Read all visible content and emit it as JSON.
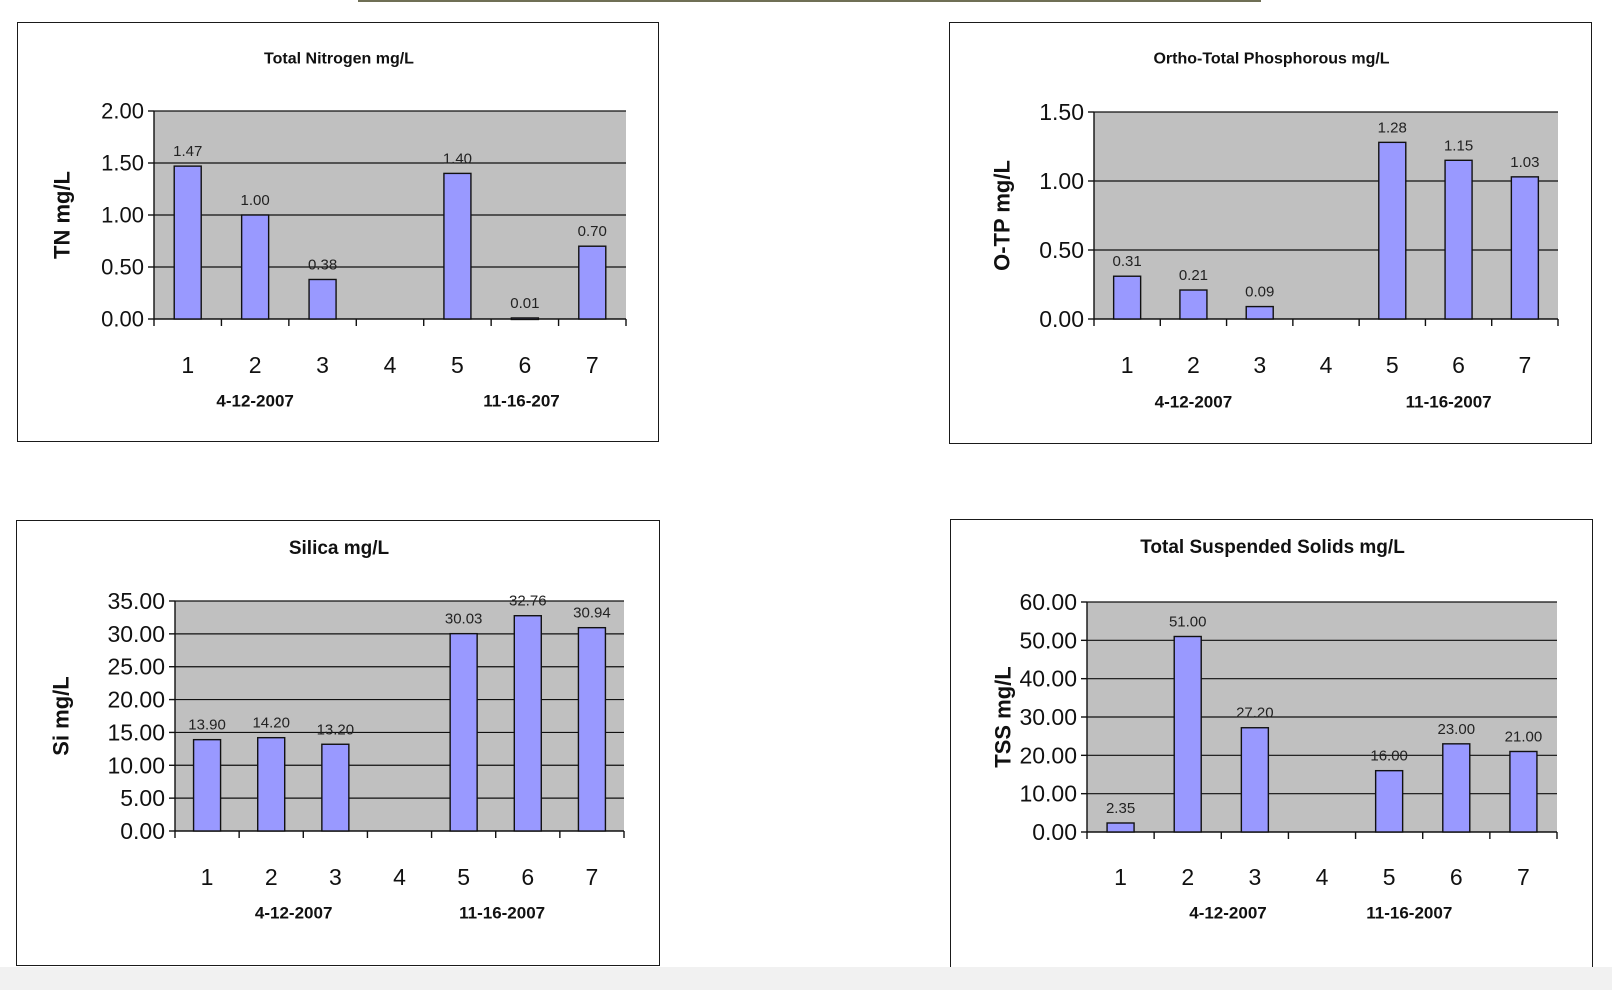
{
  "chart_data": [
    {
      "id": "tn",
      "type": "bar",
      "title": "Total Nitrogen mg/L",
      "ylabel": "TN mg/L",
      "xlabel": "",
      "categories": [
        "1",
        "2",
        "3",
        "4",
        "5",
        "6",
        "7"
      ],
      "values": [
        1.47,
        1.0,
        0.38,
        null,
        1.4,
        0.01,
        0.7
      ],
      "data_labels": [
        "1.47",
        "1.00",
        "0.38",
        "",
        "1.40",
        "0.01",
        "0.70"
      ],
      "ylim": [
        0,
        2.0
      ],
      "yticks": [
        "0.00",
        "0.50",
        "1.00",
        "1.50",
        "2.00"
      ],
      "date_groups": [
        {
          "label": "4-12-2007",
          "center_category": 2
        },
        {
          "label": "11-16-207",
          "center_category": 5.95
        }
      ],
      "bar_color": "#9999ff",
      "plot_bg": "#c0c0c0",
      "grid": true
    },
    {
      "id": "otp",
      "type": "bar",
      "title": "Ortho-Total Phosphorous mg/L",
      "ylabel": "O-TP mg/L",
      "xlabel": "",
      "categories": [
        "1",
        "2",
        "3",
        "4",
        "5",
        "6",
        "7"
      ],
      "values": [
        0.31,
        0.21,
        0.09,
        null,
        1.28,
        1.15,
        1.03
      ],
      "data_labels": [
        "0.31",
        "0.21",
        "0.09",
        "",
        "1.28",
        "1.15",
        "1.03"
      ],
      "ylim": [
        0,
        1.5
      ],
      "yticks": [
        "0.00",
        "0.50",
        "1.00",
        "1.50"
      ],
      "date_groups": [
        {
          "label": "4-12-2007",
          "center_category": 2
        },
        {
          "label": "11-16-2007",
          "center_category": 5.85
        }
      ],
      "bar_color": "#9999ff",
      "plot_bg": "#c0c0c0",
      "grid": true
    },
    {
      "id": "si",
      "type": "bar",
      "title": "Silica mg/L",
      "ylabel": "Si mg/L",
      "xlabel": "",
      "categories": [
        "1",
        "2",
        "3",
        "4",
        "5",
        "6",
        "7"
      ],
      "values": [
        13.9,
        14.2,
        13.2,
        null,
        30.03,
        32.76,
        30.94
      ],
      "data_labels": [
        "13.90",
        "14.20",
        "13.20",
        "",
        "30.03",
        "32.76",
        "30.94"
      ],
      "ylim": [
        0,
        35
      ],
      "yticks": [
        "0.00",
        "5.00",
        "10.00",
        "15.00",
        "20.00",
        "25.00",
        "30.00",
        "35.00"
      ],
      "date_groups": [
        {
          "label": "4-12-2007",
          "center_category": 2.35
        },
        {
          "label": "11-16-2007",
          "center_category": 5.6
        }
      ],
      "bar_color": "#9999ff",
      "plot_bg": "#c0c0c0",
      "grid": true
    },
    {
      "id": "tss",
      "type": "bar",
      "title": "Total Suspended Solids mg/L",
      "ylabel": "TSS mg/L",
      "xlabel": "",
      "categories": [
        "1",
        "2",
        "3",
        "4",
        "5",
        "6",
        "7"
      ],
      "values": [
        2.35,
        51.0,
        27.2,
        null,
        16.0,
        23.0,
        21.0
      ],
      "data_labels": [
        "2.35",
        "51.00",
        "27.20",
        "",
        "16.00",
        "23.00",
        "21.00"
      ],
      "ylim": [
        0,
        60
      ],
      "yticks": [
        "0.00",
        "10.00",
        "20.00",
        "30.00",
        "40.00",
        "50.00",
        "60.00"
      ],
      "date_groups": [
        {
          "label": "4-12-2007",
          "center_category": 2.6
        },
        {
          "label": "11-16-2007",
          "center_category": 5.3
        }
      ],
      "bar_color": "#9999ff",
      "plot_bg": "#c0c0c0",
      "grid": true
    }
  ]
}
